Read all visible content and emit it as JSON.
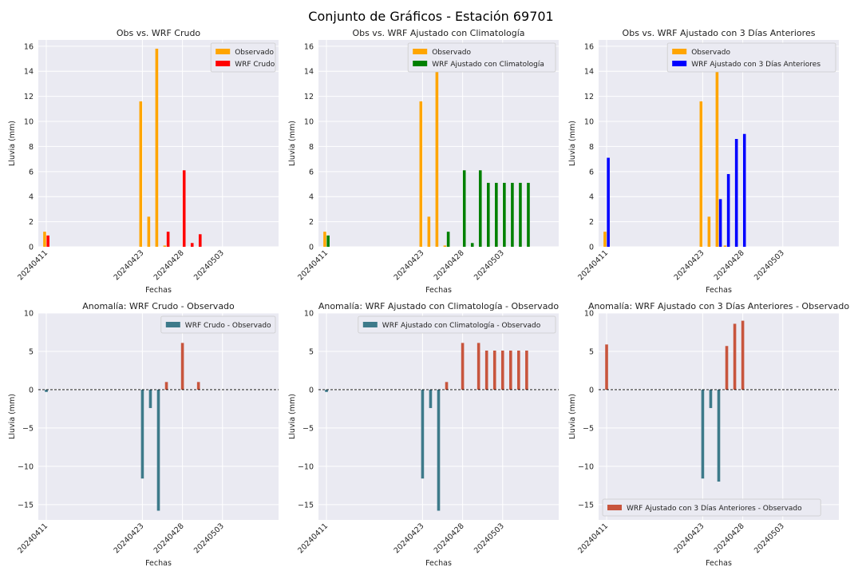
{
  "figure": {
    "title": "Conjunto de Gráficos - Estación 69701"
  },
  "colors": {
    "observed": "#ffa500",
    "wrf_raw": "#ff0000",
    "wrf_clim": "#008000",
    "wrf_3days": "#0000ff",
    "anomaly_negative": "#3d7a8a",
    "anomaly_positive": "#c8553d",
    "plot_background": "#eaeaf2",
    "grid": "#ffffff"
  },
  "chart_data": [
    {
      "type": "bar",
      "title": "Obs vs. WRF Crudo",
      "xlabel": "Fechas",
      "ylabel": "Lluvia (mm)",
      "xlim": [
        "2024-04-10",
        "2024-05-10"
      ],
      "ylim": [
        0,
        16.5
      ],
      "yticks": [
        0,
        2,
        4,
        6,
        8,
        10,
        12,
        14,
        16
      ],
      "xticks": [
        "20240411",
        "20240423",
        "20240428",
        "20240503"
      ],
      "legend": "top-right",
      "grid": true,
      "series": [
        {
          "name": "Observado",
          "color_key": "observed",
          "x": [
            "2024-04-11",
            "2024-04-23",
            "2024-04-24",
            "2024-04-25",
            "2024-04-26"
          ],
          "values": [
            1.2,
            11.6,
            2.4,
            15.8,
            0.1
          ]
        },
        {
          "name": "WRF Crudo",
          "color_key": "wrf_raw",
          "x": [
            "2024-04-11",
            "2024-04-26",
            "2024-04-28",
            "2024-04-29",
            "2024-04-30"
          ],
          "values": [
            0.9,
            1.2,
            6.1,
            0.3,
            1.0
          ]
        }
      ]
    },
    {
      "type": "bar",
      "title": "Obs vs. WRF Ajustado con Climatología",
      "xlabel": "Fechas",
      "ylabel": "Lluvia (mm)",
      "xlim": [
        "2024-04-10",
        "2024-05-10"
      ],
      "ylim": [
        0,
        16.5
      ],
      "yticks": [
        0,
        2,
        4,
        6,
        8,
        10,
        12,
        14,
        16
      ],
      "xticks": [
        "20240411",
        "20240423",
        "20240428",
        "20240503"
      ],
      "legend": "top-right",
      "grid": true,
      "series": [
        {
          "name": "Observado",
          "color_key": "observed",
          "x": [
            "2024-04-11",
            "2024-04-23",
            "2024-04-24",
            "2024-04-25",
            "2024-04-26"
          ],
          "values": [
            1.2,
            11.6,
            2.4,
            15.8,
            0.1
          ]
        },
        {
          "name": "WRF Ajustado con Climatología",
          "color_key": "wrf_clim",
          "x": [
            "2024-04-11",
            "2024-04-26",
            "2024-04-28",
            "2024-04-29",
            "2024-04-30",
            "2024-05-01",
            "2024-05-02",
            "2024-05-03",
            "2024-05-04",
            "2024-05-05",
            "2024-05-06"
          ],
          "values": [
            0.9,
            1.2,
            6.1,
            0.3,
            6.1,
            5.1,
            5.1,
            5.1,
            5.1,
            5.1,
            5.1
          ]
        }
      ]
    },
    {
      "type": "bar",
      "title": "Obs vs. WRF Ajustado con 3 Días Anteriores",
      "xlabel": "Fechas",
      "ylabel": "Lluvia (mm)",
      "xlim": [
        "2024-04-10",
        "2024-05-10"
      ],
      "ylim": [
        0,
        16.5
      ],
      "yticks": [
        0,
        2,
        4,
        6,
        8,
        10,
        12,
        14,
        16
      ],
      "xticks": [
        "20240411",
        "20240423",
        "20240428",
        "20240503"
      ],
      "legend": "top-right",
      "grid": true,
      "series": [
        {
          "name": "Observado",
          "color_key": "observed",
          "x": [
            "2024-04-11",
            "2024-04-23",
            "2024-04-24",
            "2024-04-25",
            "2024-04-26"
          ],
          "values": [
            1.2,
            11.6,
            2.4,
            15.8,
            0.1
          ]
        },
        {
          "name": "WRF Ajustado con 3 Días Anteriores",
          "color_key": "wrf_3days",
          "x": [
            "2024-04-11",
            "2024-04-25",
            "2024-04-26",
            "2024-04-27",
            "2024-04-28"
          ],
          "values": [
            7.1,
            3.8,
            5.8,
            8.6,
            9.0
          ]
        }
      ]
    },
    {
      "type": "bar",
      "title": "Anomalía: WRF Crudo - Observado",
      "xlabel": "Fechas",
      "ylabel": "Lluvia (mm)",
      "xlim": [
        "2024-04-10",
        "2024-05-10"
      ],
      "ylim": [
        -17,
        10
      ],
      "yticks": [
        -15,
        -10,
        -5,
        0,
        5,
        10
      ],
      "xticks": [
        "20240411",
        "20240423",
        "20240428",
        "20240503"
      ],
      "legend": "top-right",
      "zero_line": true,
      "grid": true,
      "series": [
        {
          "name": "WRF Crudo - Observado",
          "x": [
            "2024-04-11",
            "2024-04-23",
            "2024-04-24",
            "2024-04-25",
            "2024-04-26",
            "2024-04-28",
            "2024-04-30"
          ],
          "values": [
            -0.3,
            -11.6,
            -2.4,
            -15.8,
            1.0,
            6.1,
            1.0
          ]
        }
      ]
    },
    {
      "type": "bar",
      "title": "Anomalía: WRF Ajustado con Climatología - Observado",
      "xlabel": "Fechas",
      "ylabel": "Lluvia (mm)",
      "xlim": [
        "2024-04-10",
        "2024-05-10"
      ],
      "ylim": [
        -17,
        10
      ],
      "yticks": [
        -15,
        -10,
        -5,
        0,
        5,
        10
      ],
      "xticks": [
        "20240411",
        "20240423",
        "20240428",
        "20240503"
      ],
      "legend": "top-right",
      "zero_line": true,
      "grid": true,
      "series": [
        {
          "name": "WRF Ajustado con Climatología - Observado",
          "x": [
            "2024-04-11",
            "2024-04-23",
            "2024-04-24",
            "2024-04-25",
            "2024-04-26",
            "2024-04-28",
            "2024-04-30",
            "2024-05-01",
            "2024-05-02",
            "2024-05-03",
            "2024-05-04",
            "2024-05-05",
            "2024-05-06"
          ],
          "values": [
            -0.3,
            -11.6,
            -2.4,
            -15.8,
            1.0,
            6.1,
            6.1,
            5.1,
            5.1,
            5.1,
            5.1,
            5.1,
            5.1
          ]
        }
      ]
    },
    {
      "type": "bar",
      "title": "Anomalía: WRF Ajustado con 3 Días Anteriores - Observado",
      "xlabel": "Fechas",
      "ylabel": "Lluvia (mm)",
      "xlim": [
        "2024-04-10",
        "2024-05-10"
      ],
      "ylim": [
        -17,
        10
      ],
      "yticks": [
        -15,
        -10,
        -5,
        0,
        5,
        10
      ],
      "xticks": [
        "20240411",
        "20240423",
        "20240428",
        "20240503"
      ],
      "legend": "bottom-left",
      "zero_line": true,
      "grid": true,
      "series": [
        {
          "name": "WRF Ajustado con 3 Días Anteriores - Observado",
          "x": [
            "2024-04-11",
            "2024-04-23",
            "2024-04-24",
            "2024-04-25",
            "2024-04-26",
            "2024-04-27",
            "2024-04-28"
          ],
          "values": [
            5.9,
            -11.6,
            -2.4,
            -12.0,
            5.7,
            8.6,
            9.0
          ]
        }
      ]
    }
  ]
}
